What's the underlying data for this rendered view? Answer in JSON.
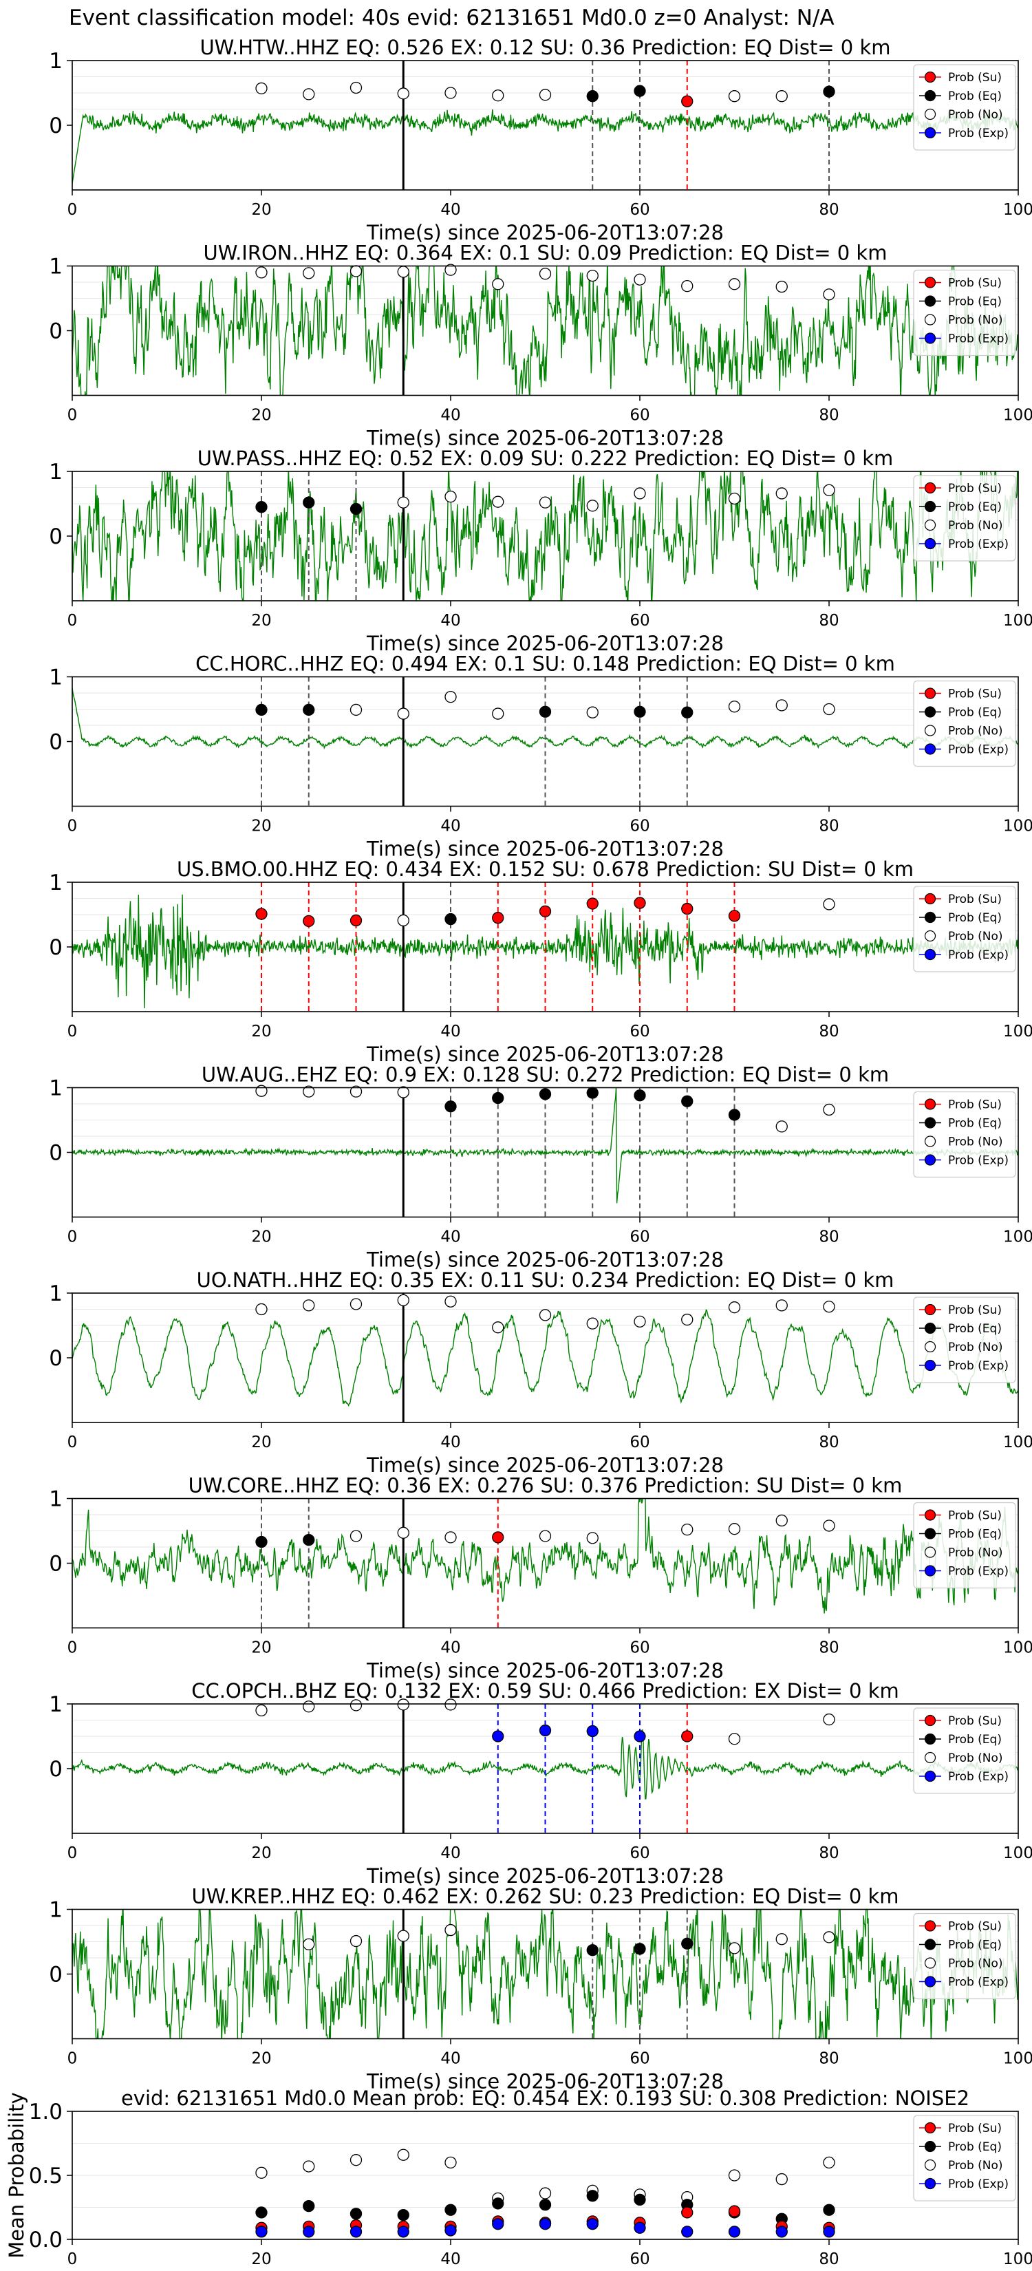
{
  "figure": {
    "title": "Event classification model: 40s evid: 62131651 Md0.0 z=0 Analyst: N/A"
  },
  "colors": {
    "Su": "#ff0000",
    "Eq": "#000000",
    "No": "#ffffff",
    "Exp": "#0000ff",
    "trace": "#008000",
    "pred_line": "#000000"
  },
  "legend_labels": [
    "Prob (Su)",
    "Prob (Eq)",
    "Prob (No)",
    "Prob (Exp)"
  ],
  "chart_data": [
    {
      "type": "line",
      "station": "UW.HTW..HHZ",
      "title": "UW.HTW..HHZ   EQ: 0.526  EX: 0.12  SU: 0.36   Prediction: EQ    Dist= 0 km",
      "xlabel": "Time(s) since 2025-06-20T13:07:28",
      "ylabel": "",
      "xlim": [
        0,
        100
      ],
      "ylim": [
        -1,
        1
      ],
      "x_ticks": [
        "0",
        "20",
        "40",
        "60",
        "80",
        "100"
      ],
      "y_ticks": [
        "1",
        "0"
      ],
      "legend": "right",
      "trace_style": "calm",
      "trace_seed": 11,
      "prediction_time": 35,
      "points": [
        {
          "x": 20,
          "y": 0.57,
          "cls": "No"
        },
        {
          "x": 25,
          "y": 0.48,
          "cls": "No"
        },
        {
          "x": 30,
          "y": 0.58,
          "cls": "No"
        },
        {
          "x": 35,
          "y": 0.49,
          "cls": "No"
        },
        {
          "x": 40,
          "y": 0.5,
          "cls": "No"
        },
        {
          "x": 45,
          "y": 0.46,
          "cls": "No"
        },
        {
          "x": 50,
          "y": 0.47,
          "cls": "No"
        },
        {
          "x": 55,
          "y": 0.45,
          "cls": "Eq"
        },
        {
          "x": 60,
          "y": 0.53,
          "cls": "Eq"
        },
        {
          "x": 65,
          "y": 0.37,
          "cls": "Su"
        },
        {
          "x": 70,
          "y": 0.45,
          "cls": "No"
        },
        {
          "x": 75,
          "y": 0.45,
          "cls": "No"
        },
        {
          "x": 80,
          "y": 0.52,
          "cls": "Eq"
        }
      ]
    },
    {
      "type": "line",
      "station": "UW.IRON..HHZ",
      "title": "UW.IRON..HHZ   EQ: 0.364  EX: 0.1  SU: 0.09   Prediction: EQ    Dist= 0 km",
      "xlabel": "Time(s) since 2025-06-20T13:07:28",
      "ylabel": "",
      "xlim": [
        0,
        100
      ],
      "ylim": [
        -1,
        1
      ],
      "x_ticks": [
        "0",
        "20",
        "40",
        "60",
        "80",
        "100"
      ],
      "y_ticks": [
        "1",
        "0"
      ],
      "legend": "right",
      "trace_style": "noisy",
      "trace_seed": 23,
      "prediction_time": 35,
      "points": [
        {
          "x": 20,
          "y": 0.9,
          "cls": "No"
        },
        {
          "x": 25,
          "y": 0.89,
          "cls": "No"
        },
        {
          "x": 30,
          "y": 0.92,
          "cls": "No"
        },
        {
          "x": 35,
          "y": 0.91,
          "cls": "No"
        },
        {
          "x": 40,
          "y": 0.94,
          "cls": "No"
        },
        {
          "x": 45,
          "y": 0.72,
          "cls": "No"
        },
        {
          "x": 50,
          "y": 0.88,
          "cls": "No"
        },
        {
          "x": 55,
          "y": 0.85,
          "cls": "No"
        },
        {
          "x": 60,
          "y": 0.79,
          "cls": "No"
        },
        {
          "x": 65,
          "y": 0.69,
          "cls": "No"
        },
        {
          "x": 70,
          "y": 0.72,
          "cls": "No"
        },
        {
          "x": 75,
          "y": 0.68,
          "cls": "No"
        },
        {
          "x": 80,
          "y": 0.56,
          "cls": "No"
        }
      ]
    },
    {
      "type": "line",
      "station": "UW.PASS..HHZ",
      "title": "UW.PASS..HHZ   EQ: 0.52  EX: 0.09  SU: 0.222   Prediction: EQ    Dist= 0 km",
      "xlabel": "Time(s) since 2025-06-20T13:07:28",
      "ylabel": "",
      "xlim": [
        0,
        100
      ],
      "ylim": [
        -1,
        1
      ],
      "x_ticks": [
        "0",
        "20",
        "40",
        "60",
        "80",
        "100"
      ],
      "y_ticks": [
        "1",
        "0"
      ],
      "legend": "right",
      "trace_style": "noisy",
      "trace_seed": 37,
      "prediction_time": 35,
      "points": [
        {
          "x": 20,
          "y": 0.45,
          "cls": "Eq"
        },
        {
          "x": 25,
          "y": 0.52,
          "cls": "Eq"
        },
        {
          "x": 30,
          "y": 0.42,
          "cls": "Eq"
        },
        {
          "x": 35,
          "y": 0.52,
          "cls": "No"
        },
        {
          "x": 40,
          "y": 0.61,
          "cls": "No"
        },
        {
          "x": 45,
          "y": 0.53,
          "cls": "No"
        },
        {
          "x": 50,
          "y": 0.52,
          "cls": "No"
        },
        {
          "x": 55,
          "y": 0.47,
          "cls": "No"
        },
        {
          "x": 60,
          "y": 0.66,
          "cls": "No"
        },
        {
          "x": 70,
          "y": 0.58,
          "cls": "No"
        },
        {
          "x": 75,
          "y": 0.66,
          "cls": "No"
        },
        {
          "x": 80,
          "y": 0.71,
          "cls": "No"
        }
      ]
    },
    {
      "type": "line",
      "station": "CC.HORC..HHZ",
      "title": "CC.HORC..HHZ   EQ: 0.494  EX: 0.1  SU: 0.148   Prediction: EQ    Dist= 0 km",
      "xlabel": "Time(s) since 2025-06-20T13:07:28",
      "ylabel": "",
      "xlim": [
        0,
        100
      ],
      "ylim": [
        -1,
        1
      ],
      "x_ticks": [
        "0",
        "20",
        "40",
        "60",
        "80",
        "100"
      ],
      "y_ticks": [
        "1",
        "0"
      ],
      "legend": "right",
      "trace_style": "wave",
      "trace_seed": 41,
      "prediction_time": 35,
      "points": [
        {
          "x": 20,
          "y": 0.49,
          "cls": "Eq"
        },
        {
          "x": 25,
          "y": 0.49,
          "cls": "Eq"
        },
        {
          "x": 30,
          "y": 0.49,
          "cls": "No"
        },
        {
          "x": 35,
          "y": 0.43,
          "cls": "No"
        },
        {
          "x": 40,
          "y": 0.69,
          "cls": "No"
        },
        {
          "x": 45,
          "y": 0.43,
          "cls": "No"
        },
        {
          "x": 50,
          "y": 0.46,
          "cls": "Eq"
        },
        {
          "x": 55,
          "y": 0.45,
          "cls": "No"
        },
        {
          "x": 60,
          "y": 0.46,
          "cls": "Eq"
        },
        {
          "x": 65,
          "y": 0.45,
          "cls": "Eq"
        },
        {
          "x": 70,
          "y": 0.54,
          "cls": "No"
        },
        {
          "x": 75,
          "y": 0.56,
          "cls": "No"
        },
        {
          "x": 80,
          "y": 0.5,
          "cls": "No"
        }
      ]
    },
    {
      "type": "line",
      "station": "US.BMO.00.HHZ",
      "title": "US.BMO.00.HHZ   EQ: 0.434  EX: 0.152  SU: 0.678   Prediction: SU    Dist= 0 km",
      "xlabel": "Time(s) since 2025-06-20T13:07:28",
      "ylabel": "",
      "xlim": [
        0,
        100
      ],
      "ylim": [
        -1,
        1
      ],
      "x_ticks": [
        "0",
        "20",
        "40",
        "60",
        "80",
        "100"
      ],
      "y_ticks": [
        "1",
        "0"
      ],
      "legend": "right",
      "trace_style": "burst",
      "trace_seed": 53,
      "prediction_time": 35,
      "points": [
        {
          "x": 20,
          "y": 0.51,
          "cls": "Su"
        },
        {
          "x": 25,
          "y": 0.4,
          "cls": "Su"
        },
        {
          "x": 30,
          "y": 0.41,
          "cls": "Su"
        },
        {
          "x": 35,
          "y": 0.41,
          "cls": "No"
        },
        {
          "x": 40,
          "y": 0.43,
          "cls": "Eq"
        },
        {
          "x": 45,
          "y": 0.45,
          "cls": "Su"
        },
        {
          "x": 50,
          "y": 0.55,
          "cls": "Su"
        },
        {
          "x": 55,
          "y": 0.67,
          "cls": "Su"
        },
        {
          "x": 60,
          "y": 0.68,
          "cls": "Su"
        },
        {
          "x": 65,
          "y": 0.59,
          "cls": "Su"
        },
        {
          "x": 70,
          "y": 0.48,
          "cls": "Su"
        },
        {
          "x": 80,
          "y": 0.66,
          "cls": "No"
        }
      ]
    },
    {
      "type": "line",
      "station": "UW.AUG..EHZ",
      "title": "UW.AUG..EHZ   EQ: 0.9  EX: 0.128  SU: 0.272   Prediction: EQ    Dist= 0 km",
      "xlabel": "Time(s) since 2025-06-20T13:07:28",
      "ylabel": "",
      "xlim": [
        0,
        100
      ],
      "ylim": [
        -1,
        1
      ],
      "x_ticks": [
        "0",
        "20",
        "40",
        "60",
        "80",
        "100"
      ],
      "y_ticks": [
        "1",
        "0"
      ],
      "legend": "right",
      "trace_style": "quiet_spike",
      "trace_seed": 67,
      "prediction_time": 35,
      "points": [
        {
          "x": 20,
          "y": 0.95,
          "cls": "No"
        },
        {
          "x": 25,
          "y": 0.94,
          "cls": "No"
        },
        {
          "x": 30,
          "y": 0.94,
          "cls": "No"
        },
        {
          "x": 35,
          "y": 0.93,
          "cls": "No"
        },
        {
          "x": 40,
          "y": 0.71,
          "cls": "Eq"
        },
        {
          "x": 45,
          "y": 0.84,
          "cls": "Eq"
        },
        {
          "x": 50,
          "y": 0.9,
          "cls": "Eq"
        },
        {
          "x": 55,
          "y": 0.92,
          "cls": "Eq"
        },
        {
          "x": 60,
          "y": 0.88,
          "cls": "Eq"
        },
        {
          "x": 65,
          "y": 0.79,
          "cls": "Eq"
        },
        {
          "x": 70,
          "y": 0.58,
          "cls": "Eq"
        },
        {
          "x": 75,
          "y": 0.4,
          "cls": "No"
        },
        {
          "x": 80,
          "y": 0.66,
          "cls": "No"
        }
      ]
    },
    {
      "type": "line",
      "station": "UO.NATH..HHZ",
      "title": "UO.NATH..HHZ   EQ: 0.35  EX: 0.11  SU: 0.234   Prediction: EQ    Dist= 0 km",
      "xlabel": "Time(s) since 2025-06-20T13:07:28",
      "ylabel": "",
      "xlim": [
        0,
        100
      ],
      "ylim": [
        -1,
        1
      ],
      "x_ticks": [
        "0",
        "20",
        "40",
        "60",
        "80",
        "100"
      ],
      "y_ticks": [
        "1",
        "0"
      ],
      "legend": "right",
      "trace_style": "bigwave",
      "trace_seed": 71,
      "prediction_time": 35,
      "points": [
        {
          "x": 20,
          "y": 0.75,
          "cls": "No"
        },
        {
          "x": 25,
          "y": 0.81,
          "cls": "No"
        },
        {
          "x": 30,
          "y": 0.83,
          "cls": "No"
        },
        {
          "x": 35,
          "y": 0.89,
          "cls": "No"
        },
        {
          "x": 40,
          "y": 0.87,
          "cls": "No"
        },
        {
          "x": 45,
          "y": 0.47,
          "cls": "No"
        },
        {
          "x": 50,
          "y": 0.66,
          "cls": "No"
        },
        {
          "x": 55,
          "y": 0.53,
          "cls": "No"
        },
        {
          "x": 60,
          "y": 0.56,
          "cls": "No"
        },
        {
          "x": 65,
          "y": 0.59,
          "cls": "No"
        },
        {
          "x": 70,
          "y": 0.78,
          "cls": "No"
        },
        {
          "x": 75,
          "y": 0.81,
          "cls": "No"
        },
        {
          "x": 80,
          "y": 0.79,
          "cls": "No"
        }
      ]
    },
    {
      "type": "line",
      "station": "UW.CORE..HHZ",
      "title": "UW.CORE..HHZ   EQ: 0.36  EX: 0.276  SU: 0.376   Prediction: SU    Dist= 0 km",
      "xlabel": "Time(s) since 2025-06-20T13:07:28",
      "ylabel": "",
      "xlim": [
        0,
        100
      ],
      "ylim": [
        -1,
        1
      ],
      "x_ticks": [
        "0",
        "20",
        "40",
        "60",
        "80",
        "100"
      ],
      "y_ticks": [
        "1",
        "0"
      ],
      "legend": "right",
      "trace_style": "growing",
      "trace_seed": 83,
      "prediction_time": 35,
      "points": [
        {
          "x": 20,
          "y": 0.33,
          "cls": "Eq"
        },
        {
          "x": 25,
          "y": 0.36,
          "cls": "Eq"
        },
        {
          "x": 30,
          "y": 0.42,
          "cls": "No"
        },
        {
          "x": 35,
          "y": 0.47,
          "cls": "No"
        },
        {
          "x": 40,
          "y": 0.4,
          "cls": "No"
        },
        {
          "x": 45,
          "y": 0.4,
          "cls": "Su"
        },
        {
          "x": 50,
          "y": 0.42,
          "cls": "No"
        },
        {
          "x": 55,
          "y": 0.39,
          "cls": "No"
        },
        {
          "x": 65,
          "y": 0.52,
          "cls": "No"
        },
        {
          "x": 70,
          "y": 0.53,
          "cls": "No"
        },
        {
          "x": 75,
          "y": 0.66,
          "cls": "No"
        },
        {
          "x": 80,
          "y": 0.58,
          "cls": "No"
        }
      ]
    },
    {
      "type": "line",
      "station": "CC.OPCH..BHZ",
      "title": "CC.OPCH..BHZ   EQ: 0.132  EX: 0.59  SU: 0.466   Prediction: EX    Dist= 0 km",
      "xlabel": "Time(s) since 2025-06-20T13:07:28",
      "ylabel": "",
      "xlim": [
        0,
        100
      ],
      "ylim": [
        -1,
        1
      ],
      "x_ticks": [
        "0",
        "20",
        "40",
        "60",
        "80",
        "100"
      ],
      "y_ticks": [
        "1",
        "0"
      ],
      "legend": "right",
      "trace_style": "explosion",
      "trace_seed": 97,
      "prediction_time": 35,
      "points": [
        {
          "x": 20,
          "y": 0.9,
          "cls": "No"
        },
        {
          "x": 25,
          "y": 0.96,
          "cls": "No"
        },
        {
          "x": 30,
          "y": 0.98,
          "cls": "No"
        },
        {
          "x": 35,
          "y": 0.99,
          "cls": "No"
        },
        {
          "x": 40,
          "y": 0.99,
          "cls": "No"
        },
        {
          "x": 45,
          "y": 0.5,
          "cls": "Exp"
        },
        {
          "x": 50,
          "y": 0.59,
          "cls": "Exp"
        },
        {
          "x": 55,
          "y": 0.58,
          "cls": "Exp"
        },
        {
          "x": 60,
          "y": 0.5,
          "cls": "Exp"
        },
        {
          "x": 65,
          "y": 0.5,
          "cls": "Su"
        },
        {
          "x": 70,
          "y": 0.46,
          "cls": "No"
        },
        {
          "x": 80,
          "y": 0.76,
          "cls": "No"
        }
      ]
    },
    {
      "type": "line",
      "station": "UW.KREP..HHZ",
      "title": "UW.KREP..HHZ   EQ: 0.462  EX: 0.262  SU: 0.23   Prediction: EQ    Dist= 0 km",
      "xlabel": "Time(s) since 2025-06-20T13:07:28",
      "ylabel": "",
      "xlim": [
        0,
        100
      ],
      "ylim": [
        -1,
        1
      ],
      "x_ticks": [
        "0",
        "20",
        "40",
        "60",
        "80",
        "100"
      ],
      "y_ticks": [
        "1",
        "0"
      ],
      "legend": "right",
      "trace_style": "noisy",
      "trace_seed": 109,
      "prediction_time": 35,
      "points": [
        {
          "x": 25,
          "y": 0.46,
          "cls": "No"
        },
        {
          "x": 30,
          "y": 0.51,
          "cls": "No"
        },
        {
          "x": 35,
          "y": 0.59,
          "cls": "No"
        },
        {
          "x": 40,
          "y": 0.68,
          "cls": "No"
        },
        {
          "x": 55,
          "y": 0.37,
          "cls": "Eq"
        },
        {
          "x": 60,
          "y": 0.39,
          "cls": "Eq"
        },
        {
          "x": 65,
          "y": 0.47,
          "cls": "Eq"
        },
        {
          "x": 70,
          "y": 0.4,
          "cls": "No"
        },
        {
          "x": 75,
          "y": 0.54,
          "cls": "No"
        },
        {
          "x": 80,
          "y": 0.57,
          "cls": "No"
        }
      ]
    },
    {
      "type": "scatter",
      "station": "summary",
      "title": "evid: 62131651  Md0.0   Mean prob:   EQ: 0.454  EX: 0.193  SU: 0.308   Prediction: NOISE2",
      "xlabel": "",
      "ylabel": "Mean Probability",
      "xlim": [
        0,
        100
      ],
      "ylim": [
        0,
        1
      ],
      "x_ticks": [
        "0",
        "20",
        "40",
        "60",
        "80",
        "100"
      ],
      "y_ticks": [
        "0.0",
        "0.5",
        "1.0"
      ],
      "legend": "right",
      "series": [
        {
          "cls": "No",
          "x": [
            20,
            25,
            30,
            35,
            40,
            45,
            50,
            55,
            60,
            65,
            70,
            75,
            80
          ],
          "values": [
            0.52,
            0.57,
            0.62,
            0.66,
            0.6,
            0.32,
            0.36,
            0.38,
            0.35,
            0.33,
            0.5,
            0.47,
            0.6
          ]
        },
        {
          "cls": "Eq",
          "x": [
            20,
            25,
            30,
            35,
            40,
            45,
            50,
            55,
            60,
            65,
            70,
            75,
            80
          ],
          "values": [
            0.21,
            0.26,
            0.2,
            0.19,
            0.23,
            0.28,
            0.27,
            0.34,
            0.31,
            0.27,
            0.21,
            0.16,
            0.23
          ]
        },
        {
          "cls": "Su",
          "x": [
            20,
            25,
            30,
            35,
            40,
            45,
            50,
            55,
            60,
            65,
            70,
            75,
            80
          ],
          "values": [
            0.09,
            0.1,
            0.11,
            0.1,
            0.1,
            0.14,
            0.13,
            0.14,
            0.13,
            0.21,
            0.22,
            0.1,
            0.09
          ]
        },
        {
          "cls": "Exp",
          "x": [
            20,
            25,
            30,
            35,
            40,
            45,
            50,
            55,
            60,
            65,
            70,
            75,
            80
          ],
          "values": [
            0.06,
            0.06,
            0.06,
            0.06,
            0.07,
            0.12,
            0.12,
            0.12,
            0.09,
            0.06,
            0.06,
            0.06,
            0.06
          ]
        }
      ]
    }
  ]
}
